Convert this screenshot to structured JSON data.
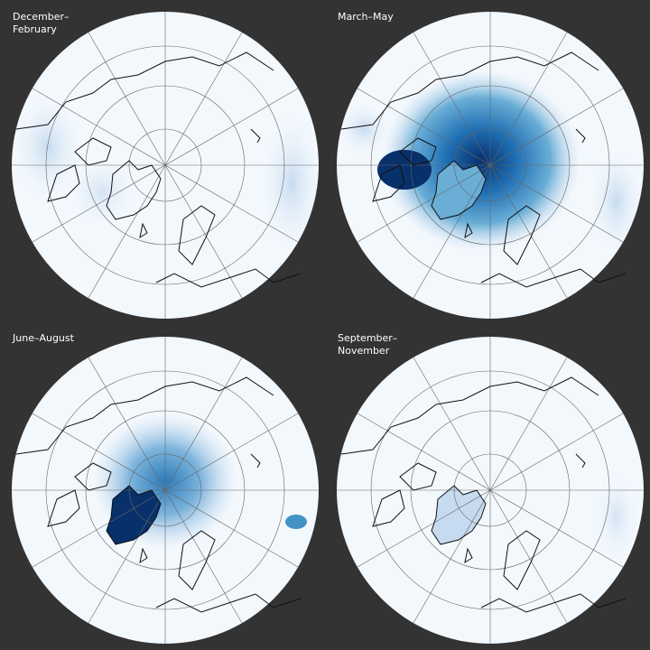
{
  "panels": [
    {
      "label": [
        "December–",
        "February"
      ]
    },
    {
      "label": [
        "March–May"
      ]
    },
    {
      "label": [
        "June–August"
      ]
    },
    {
      "label": [
        "September–",
        "November"
      ]
    }
  ]
}
